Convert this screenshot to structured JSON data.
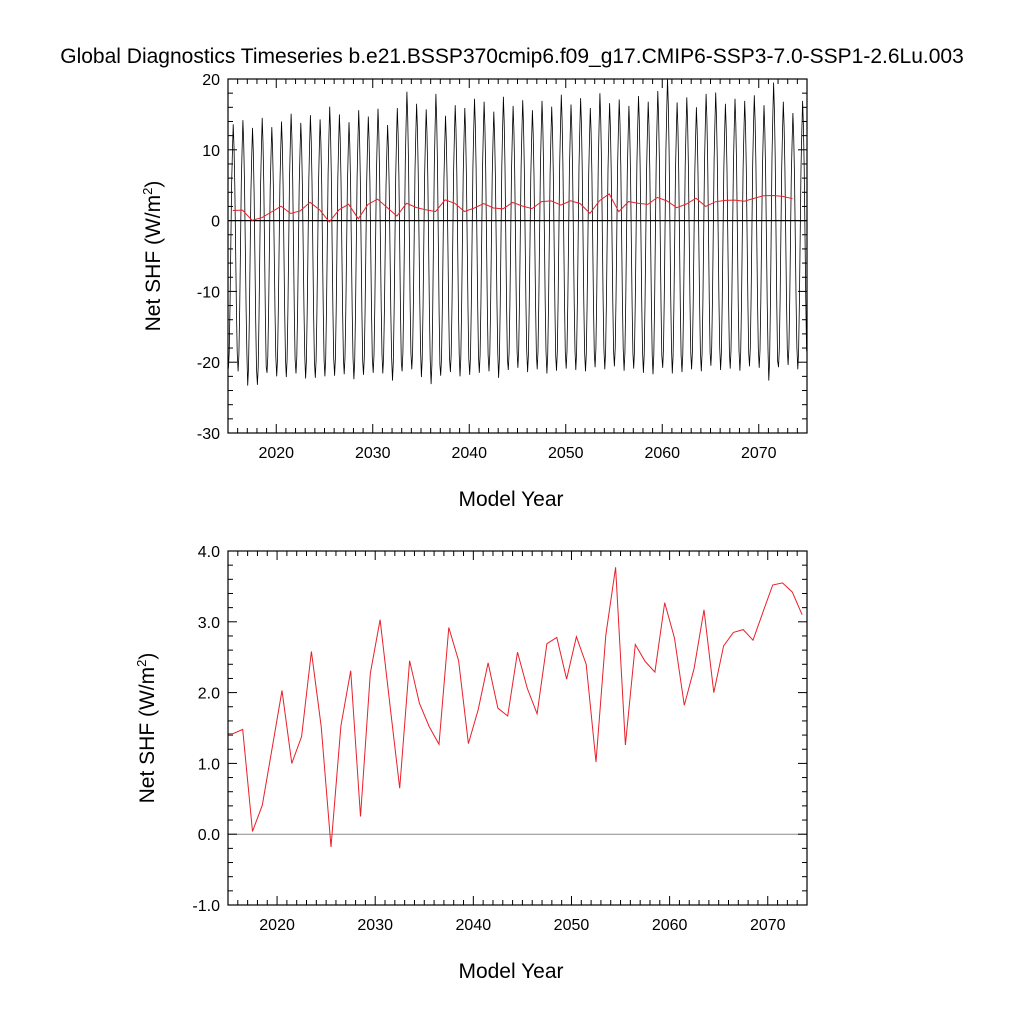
{
  "title": "Global Diagnostics Timeseries b.e21.BSSP370cmip6.f09_g17.CMIP6-SSP3-7.0-SSP1-2.6Lu.003",
  "colors": {
    "monthly": "#000000",
    "annual": "#e8202a",
    "zero_line_top": "#000000",
    "zero_line_bottom": "#8c8c8c"
  },
  "chart_data": [
    {
      "type": "line",
      "xlabel": "Model Year",
      "ylabel": "Net SHF (W/m",
      "ylabel_sup": "2",
      "ylabel_close": ")",
      "xlim": [
        2015,
        2075
      ],
      "ylim": [
        -30,
        20
      ],
      "xticks": [
        2020,
        2030,
        2040,
        2050,
        2060,
        2070
      ],
      "yticks": [
        -30,
        -20,
        -10,
        0,
        10,
        20
      ],
      "ytick_labels": [
        "-30",
        "-20",
        "-10",
        "0",
        "10",
        "20"
      ],
      "reference_line": 0,
      "monthly_series": {
        "description_free": true,
        "start_year": 2015,
        "years": 60,
        "annual_max": [
          13.6,
          14.2,
          13.1,
          14.5,
          13.2,
          14.0,
          15.1,
          13.8,
          14.9,
          14.3,
          16.1,
          15.0,
          13.9,
          15.6,
          14.7,
          15.8,
          13.5,
          15.9,
          18.2,
          16.5,
          15.7,
          17.9,
          14.8,
          16.3,
          15.9,
          17.2,
          16.8,
          15.4,
          17.5,
          16.2,
          17.0,
          15.6,
          16.9,
          16.1,
          17.8,
          16.4,
          17.3,
          15.9,
          18.0,
          16.6,
          17.1,
          16.2,
          17.6,
          16.8,
          18.3,
          20.1,
          16.7,
          17.4,
          16.0,
          17.9,
          18.1,
          16.5,
          17.2,
          16.9,
          17.7,
          16.3,
          19.5,
          16.8,
          15.2,
          16.9
        ],
        "annual_min": [
          -20.9,
          -21.3,
          -23.3,
          -23.2,
          -21.5,
          -22.0,
          -22.1,
          -21.6,
          -22.3,
          -22.2,
          -22.0,
          -21.9,
          -21.7,
          -22.4,
          -21.8,
          -21.5,
          -21.6,
          -22.6,
          -21.3,
          -21.0,
          -22.1,
          -23.1,
          -21.9,
          -21.4,
          -22.0,
          -21.8,
          -21.5,
          -21.3,
          -22.2,
          -21.1,
          -20.8,
          -21.4,
          -21.0,
          -21.6,
          -21.2,
          -20.9,
          -21.1,
          -21.3,
          -20.7,
          -21.0,
          -20.6,
          -21.2,
          -20.9,
          -21.5,
          -21.7,
          -20.8,
          -21.6,
          -21.4,
          -21.0,
          -21.3,
          -20.5,
          -21.1,
          -20.9,
          -21.2,
          -20.6,
          -20.8,
          -22.6,
          -20.7,
          -20.4,
          -21.0
        ]
      }
    },
    {
      "type": "line",
      "xlabel": "Model Year",
      "ylabel": "Net SHF (W/m",
      "ylabel_sup": "2",
      "ylabel_close": ")",
      "xlim": [
        2015,
        2074
      ],
      "ylim": [
        -1.0,
        4.0
      ],
      "xticks": [
        2020,
        2030,
        2040,
        2050,
        2060,
        2070
      ],
      "yticks": [
        -1.0,
        0.0,
        1.0,
        2.0,
        3.0,
        4.0
      ],
      "ytick_labels": [
        "-1.0",
        "0.0",
        "1.0",
        "2.0",
        "3.0",
        "4.0"
      ],
      "reference_line": 0,
      "series": [
        {
          "x": [
            2015.5,
            2016.5,
            2017.5,
            2018.5,
            2019.5,
            2020.5,
            2021.5,
            2022.5,
            2023.5,
            2024.5,
            2025.5,
            2026.5,
            2027.5,
            2028.5,
            2029.5,
            2030.5,
            2031.5,
            2032.5,
            2033.5,
            2034.5,
            2035.5,
            2036.5,
            2037.5,
            2038.5,
            2039.5,
            2040.5,
            2041.5,
            2042.5,
            2043.5,
            2044.5,
            2045.5,
            2046.5,
            2047.5,
            2048.5,
            2049.5,
            2050.5,
            2051.5,
            2052.5,
            2053.5,
            2054.5,
            2055.5,
            2056.5,
            2057.5,
            2058.5,
            2059.5,
            2060.5,
            2061.5,
            2062.5,
            2063.5,
            2064.5,
            2065.5,
            2066.5,
            2067.5,
            2068.5,
            2069.5,
            2070.5,
            2071.5,
            2072.5,
            2073.5
          ],
          "y": [
            1.42,
            1.48,
            0.04,
            0.41,
            1.22,
            2.03,
            1.0,
            1.38,
            2.58,
            1.52,
            -0.18,
            1.53,
            2.31,
            0.25,
            2.27,
            3.03,
            1.83,
            0.65,
            2.45,
            1.85,
            1.52,
            1.27,
            2.92,
            2.45,
            1.28,
            1.76,
            2.42,
            1.78,
            1.67,
            2.57,
            2.06,
            1.7,
            2.69,
            2.78,
            2.19,
            2.79,
            2.4,
            1.02,
            2.81,
            3.77,
            1.26,
            2.68,
            2.44,
            2.29,
            3.27,
            2.77,
            1.82,
            2.34,
            3.17,
            2.0,
            2.66,
            2.85,
            2.89,
            2.74,
            3.13,
            3.52,
            3.55,
            3.42,
            3.1
          ]
        }
      ]
    }
  ]
}
